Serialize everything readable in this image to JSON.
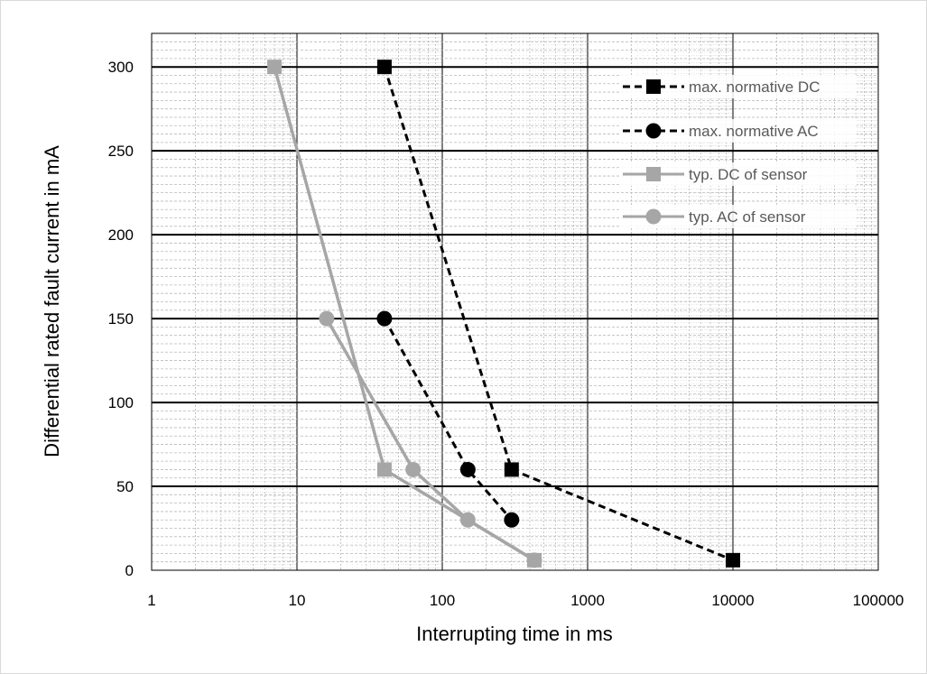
{
  "chart_data": {
    "type": "scatter",
    "title": "",
    "xlabel": "Interrupting time in ms",
    "ylabel": "Differential rated fault current in mA",
    "xscale": "log",
    "xlim": [
      1,
      100000
    ],
    "ylim": [
      0,
      320
    ],
    "x_ticks": [
      "1",
      "10",
      "100",
      "1000",
      "10000",
      "100000"
    ],
    "y_ticks": [
      "0",
      "50",
      "100",
      "150",
      "200",
      "250",
      "300"
    ],
    "grid": true,
    "legend_position": "top-right",
    "series": [
      {
        "name": "max. normative DC",
        "color": "#000000",
        "dash": true,
        "marker": "square",
        "points": [
          [
            40,
            300
          ],
          [
            300,
            60
          ],
          [
            10000,
            6
          ]
        ]
      },
      {
        "name": "max. normative AC",
        "color": "#000000",
        "dash": true,
        "marker": "circle",
        "points": [
          [
            40,
            150
          ],
          [
            150,
            60
          ],
          [
            300,
            30
          ]
        ]
      },
      {
        "name": "typ. DC of sensor",
        "color": "#a6a6a6",
        "dash": false,
        "marker": "square",
        "points": [
          [
            7,
            300
          ],
          [
            40,
            60
          ],
          [
            430,
            6
          ]
        ]
      },
      {
        "name": "typ. AC of sensor",
        "color": "#a6a6a6",
        "dash": false,
        "marker": "circle",
        "points": [
          [
            16,
            150
          ],
          [
            63,
            60
          ],
          [
            150,
            30
          ],
          [
            430,
            6
          ]
        ]
      }
    ]
  }
}
